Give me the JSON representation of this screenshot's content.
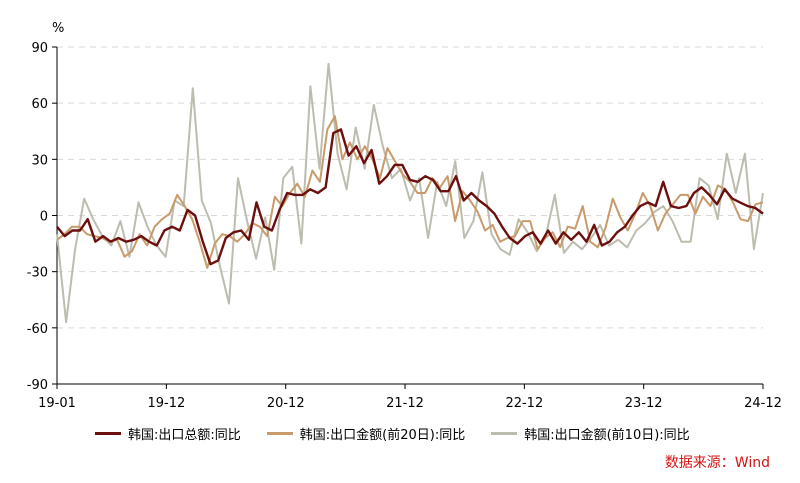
{
  "chart_data": {
    "type": "line",
    "unit": "%",
    "ylim": [
      -90,
      90
    ],
    "yticks": [
      90,
      60,
      30,
      0,
      -30,
      -60,
      -90
    ],
    "x_tick_labels": [
      "19-01",
      "19-12",
      "20-12",
      "21-12",
      "22-12",
      "23-12",
      "24-12"
    ],
    "x_start": "19-01",
    "x_end": "24-12",
    "grid": "horizontal dashed",
    "legend_position": "bottom",
    "series": [
      {
        "name": "韩国:出口总额:同比",
        "color": "#6b0f0f",
        "values": [
          -6,
          -11,
          -8,
          -8,
          -2,
          -14,
          -11,
          -14,
          -12,
          -14,
          -13,
          -11,
          -14,
          -16,
          -8,
          -6,
          -8,
          3,
          0,
          -14,
          -26,
          -24,
          -12,
          -9,
          -8,
          -13,
          7,
          -6,
          -8,
          3,
          12,
          11,
          11,
          14,
          12,
          15,
          44,
          46,
          32,
          37,
          28,
          35,
          17,
          21,
          27,
          27,
          19,
          18,
          21,
          19,
          13,
          13,
          21,
          8,
          12,
          8,
          5,
          1,
          -6,
          -12,
          -15,
          -11,
          -9,
          -15,
          -8,
          -15,
          -9,
          -13,
          -9,
          -14,
          -5,
          -16,
          -14,
          -9,
          -6,
          0,
          5,
          7,
          5,
          18,
          5,
          4,
          5,
          12,
          15,
          11,
          6,
          14,
          9,
          7,
          5,
          4,
          1
        ]
      },
      {
        "name": "韩国:出口金额(前20日):同比",
        "color": "#c99a6a",
        "values": [
          -13,
          -10,
          -6,
          -6,
          -10,
          -11,
          -12,
          -14,
          -13,
          -22,
          -19,
          -10,
          -16,
          -6,
          -2,
          1,
          11,
          5,
          -2,
          -14,
          -28,
          -15,
          -10,
          -11,
          -14,
          -10,
          -4,
          -6,
          -11,
          10,
          5,
          12,
          17,
          10,
          24,
          18,
          46,
          53,
          30,
          39,
          30,
          37,
          30,
          20,
          36,
          29,
          22,
          18,
          12,
          12,
          20,
          15,
          21,
          -3,
          13,
          8,
          2,
          -8,
          -5,
          -14,
          -12,
          -11,
          -3,
          -3,
          -18,
          -12,
          -9,
          -17,
          -6,
          -7,
          5,
          -14,
          -17,
          -7,
          9,
          -1,
          -8,
          1,
          12,
          5,
          -8,
          1,
          6,
          11,
          11,
          1,
          10,
          5,
          16,
          14,
          7,
          -2,
          -3,
          6,
          7
        ]
      },
      {
        "name": "韩国:出口金额(前10日):同比",
        "color": "#bcbcaf",
        "values": [
          -10,
          -57,
          -18,
          9,
          -2,
          -11,
          -16,
          -3,
          -22,
          7,
          -6,
          -16,
          -22,
          8,
          5,
          68,
          8,
          -4,
          -27,
          -47,
          20,
          -3,
          -23,
          -1,
          -29,
          20,
          26,
          -15,
          69,
          25,
          81,
          33,
          14,
          47,
          25,
          59,
          37,
          20,
          25,
          8,
          20,
          -12,
          18,
          5,
          29,
          -12,
          -3,
          23,
          -10,
          -18,
          -21,
          -2,
          -9,
          -19,
          -11,
          11,
          -20,
          -14,
          -18,
          -12,
          -5,
          -16,
          -13,
          -17,
          -8,
          -4,
          2,
          5,
          -3,
          -14,
          -14,
          20,
          16,
          -2,
          33,
          12,
          33,
          -18,
          12
        ]
      }
    ]
  },
  "source": {
    "text": "数据来源：Wind",
    "color": "#d41414"
  }
}
